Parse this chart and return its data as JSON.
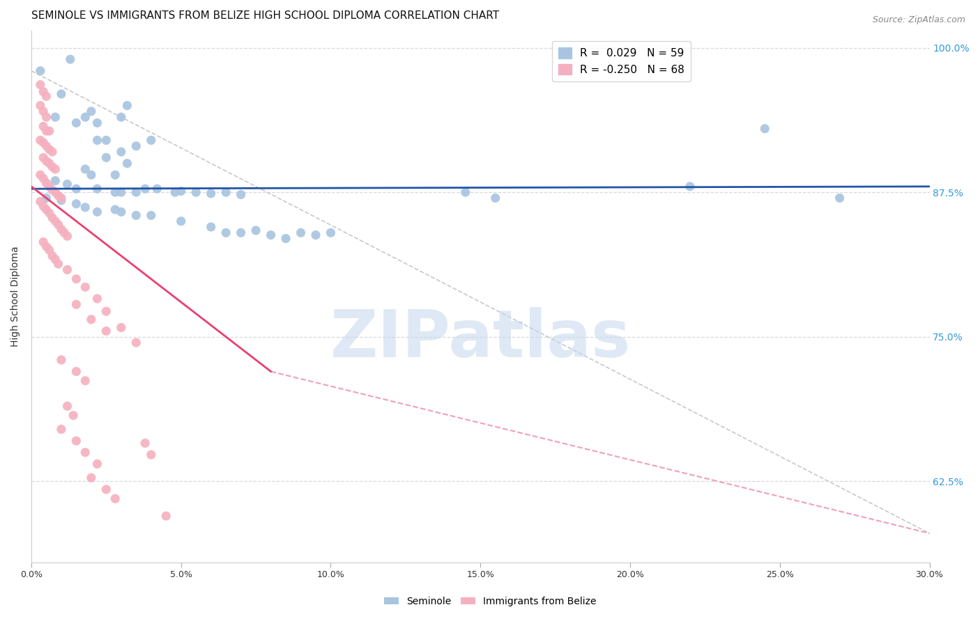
{
  "title": "SEMINOLE VS IMMIGRANTS FROM BELIZE HIGH SCHOOL DIPLOMA CORRELATION CHART",
  "source": "Source: ZipAtlas.com",
  "ylabel": "High School Diploma",
  "xlim": [
    0.0,
    0.3
  ],
  "ylim": [
    0.555,
    1.015
  ],
  "xticks": [
    0.0,
    0.05,
    0.1,
    0.15,
    0.2,
    0.25,
    0.3
  ],
  "yticks_right": [
    1.0,
    0.875,
    0.75,
    0.625
  ],
  "ytick_labels_right": [
    "100.0%",
    "87.5%",
    "75.0%",
    "62.5%"
  ],
  "xtick_labels": [
    "0.0%",
    "5.0%",
    "10.0%",
    "15.0%",
    "20.0%",
    "25.0%",
    "30.0%"
  ],
  "blue_color": "#a8c4e0",
  "blue_line_color": "#2255aa",
  "pink_color": "#f5b0bf",
  "pink_line_color": "#e84070",
  "pink_line_dash_color": "#f0a0b8",
  "dashed_line_color": "#c8c8c8",
  "grid_color": "#d8d8d8",
  "blue_scatter": [
    [
      0.003,
      0.98
    ],
    [
      0.01,
      0.96
    ],
    [
      0.013,
      0.99
    ],
    [
      0.008,
      0.94
    ],
    [
      0.015,
      0.935
    ],
    [
      0.018,
      0.94
    ],
    [
      0.022,
      0.935
    ],
    [
      0.03,
      0.94
    ],
    [
      0.032,
      0.95
    ],
    [
      0.02,
      0.945
    ],
    [
      0.025,
      0.92
    ],
    [
      0.022,
      0.92
    ],
    [
      0.03,
      0.91
    ],
    [
      0.025,
      0.905
    ],
    [
      0.035,
      0.915
    ],
    [
      0.04,
      0.92
    ],
    [
      0.032,
      0.9
    ],
    [
      0.018,
      0.895
    ],
    [
      0.02,
      0.89
    ],
    [
      0.028,
      0.89
    ],
    [
      0.008,
      0.885
    ],
    [
      0.012,
      0.882
    ],
    [
      0.015,
      0.878
    ],
    [
      0.022,
      0.878
    ],
    [
      0.028,
      0.875
    ],
    [
      0.03,
      0.875
    ],
    [
      0.035,
      0.875
    ],
    [
      0.038,
      0.878
    ],
    [
      0.042,
      0.878
    ],
    [
      0.048,
      0.875
    ],
    [
      0.05,
      0.876
    ],
    [
      0.055,
      0.875
    ],
    [
      0.06,
      0.874
    ],
    [
      0.065,
      0.875
    ],
    [
      0.07,
      0.873
    ],
    [
      0.005,
      0.87
    ],
    [
      0.01,
      0.868
    ],
    [
      0.015,
      0.865
    ],
    [
      0.018,
      0.862
    ],
    [
      0.022,
      0.858
    ],
    [
      0.028,
      0.86
    ],
    [
      0.03,
      0.858
    ],
    [
      0.035,
      0.855
    ],
    [
      0.04,
      0.855
    ],
    [
      0.05,
      0.85
    ],
    [
      0.06,
      0.845
    ],
    [
      0.065,
      0.84
    ],
    [
      0.07,
      0.84
    ],
    [
      0.075,
      0.842
    ],
    [
      0.08,
      0.838
    ],
    [
      0.085,
      0.835
    ],
    [
      0.09,
      0.84
    ],
    [
      0.095,
      0.838
    ],
    [
      0.1,
      0.84
    ],
    [
      0.145,
      0.875
    ],
    [
      0.155,
      0.87
    ],
    [
      0.22,
      0.88
    ],
    [
      0.245,
      0.93
    ],
    [
      0.27,
      0.87
    ]
  ],
  "pink_scatter": [
    [
      0.003,
      0.968
    ],
    [
      0.004,
      0.962
    ],
    [
      0.005,
      0.958
    ],
    [
      0.003,
      0.95
    ],
    [
      0.004,
      0.945
    ],
    [
      0.005,
      0.94
    ],
    [
      0.004,
      0.932
    ],
    [
      0.005,
      0.928
    ],
    [
      0.006,
      0.928
    ],
    [
      0.003,
      0.92
    ],
    [
      0.004,
      0.918
    ],
    [
      0.005,
      0.915
    ],
    [
      0.006,
      0.912
    ],
    [
      0.007,
      0.91
    ],
    [
      0.004,
      0.905
    ],
    [
      0.005,
      0.902
    ],
    [
      0.006,
      0.9
    ],
    [
      0.007,
      0.897
    ],
    [
      0.008,
      0.895
    ],
    [
      0.003,
      0.89
    ],
    [
      0.004,
      0.887
    ],
    [
      0.005,
      0.883
    ],
    [
      0.006,
      0.88
    ],
    [
      0.007,
      0.877
    ],
    [
      0.008,
      0.875
    ],
    [
      0.009,
      0.872
    ],
    [
      0.01,
      0.87
    ],
    [
      0.003,
      0.867
    ],
    [
      0.004,
      0.863
    ],
    [
      0.005,
      0.86
    ],
    [
      0.006,
      0.857
    ],
    [
      0.007,
      0.853
    ],
    [
      0.008,
      0.85
    ],
    [
      0.009,
      0.847
    ],
    [
      0.01,
      0.843
    ],
    [
      0.011,
      0.84
    ],
    [
      0.012,
      0.837
    ],
    [
      0.004,
      0.832
    ],
    [
      0.005,
      0.828
    ],
    [
      0.006,
      0.825
    ],
    [
      0.007,
      0.82
    ],
    [
      0.008,
      0.817
    ],
    [
      0.009,
      0.813
    ],
    [
      0.012,
      0.808
    ],
    [
      0.015,
      0.8
    ],
    [
      0.018,
      0.793
    ],
    [
      0.022,
      0.783
    ],
    [
      0.025,
      0.772
    ],
    [
      0.03,
      0.758
    ],
    [
      0.035,
      0.745
    ],
    [
      0.015,
      0.778
    ],
    [
      0.02,
      0.765
    ],
    [
      0.025,
      0.755
    ],
    [
      0.01,
      0.73
    ],
    [
      0.015,
      0.72
    ],
    [
      0.018,
      0.712
    ],
    [
      0.012,
      0.69
    ],
    [
      0.014,
      0.682
    ],
    [
      0.01,
      0.67
    ],
    [
      0.015,
      0.66
    ],
    [
      0.018,
      0.65
    ],
    [
      0.022,
      0.64
    ],
    [
      0.02,
      0.628
    ],
    [
      0.025,
      0.618
    ],
    [
      0.028,
      0.61
    ],
    [
      0.038,
      0.658
    ],
    [
      0.04,
      0.648
    ],
    [
      0.045,
      0.595
    ]
  ],
  "blue_trend": [
    0.0,
    0.3,
    0.878,
    0.88
  ],
  "pink_trend_solid": [
    0.0,
    0.08,
    0.88,
    0.72
  ],
  "pink_trend_dash": [
    0.08,
    0.3,
    0.72,
    0.58
  ],
  "diag_dash": [
    0.0,
    0.3,
    0.98,
    0.58
  ],
  "watermark_text": "ZIPatlas",
  "watermark_color": "#c5d8ee",
  "title_fontsize": 11,
  "tick_fontsize": 9,
  "legend_items": [
    {
      "color": "#a8c4e0",
      "label": "R =  0.029   N = 59"
    },
    {
      "color": "#f5b0bf",
      "label": "R = -0.250   N = 68"
    }
  ]
}
